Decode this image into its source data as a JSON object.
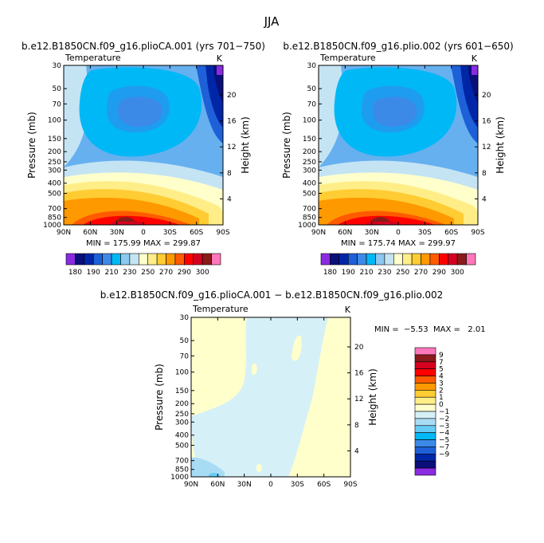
{
  "page_title": "JJA",
  "colors": {
    "c180": "#8a2be2",
    "c185": "#0a0f7a",
    "c190": "#0026a8",
    "c195": "#1e60d8",
    "c200": "#3c8ae8",
    "c210": "#00b8f5",
    "c220": "#8cc8f0",
    "c230": "#c4e4f4",
    "c240": "#ffffcc",
    "c250": "#ffee88",
    "c260": "#ffcc33",
    "c270": "#ff9900",
    "c280": "#ff5a00",
    "c290": "#ff0000",
    "c300": "#d40020",
    "c310": "#8b1a1a",
    "c320": "#ff77bb",
    "d_lo": "#8a2be2",
    "d_m9": "#0a0f7a",
    "d_m7": "#0026a8",
    "d_m5": "#1e60d8",
    "d_m4": "#3c8ae8",
    "d_m3": "#00b8f5",
    "d_m2": "#66ccf5",
    "d_m1": "#a8dcf4",
    "d_0": "#d6f0f8",
    "d_1": "#ffffcc",
    "d_2": "#ffee88",
    "d_3": "#ffcc33",
    "d_4": "#ff9900",
    "d_5": "#ff5a00",
    "d_7": "#ff0000",
    "d_9": "#d40020",
    "d_hi": "#8b1a1a",
    "d_top": "#ff77bb"
  },
  "chart_data": [
    {
      "type": "heatmap",
      "title": "b.e12.B1850CN.f09_g16.plioCA.001 (yrs 701−750)",
      "subtitle": "Temperature",
      "units": "K",
      "ylabel": "Pressure (mb)",
      "ylabel_right": "Height (km)",
      "x_ticks": [
        "90N",
        "60N",
        "30N",
        "0",
        "30S",
        "60S",
        "90S"
      ],
      "y_ticks": [
        "30",
        "50",
        "70",
        "100",
        "150",
        "200",
        "250",
        "300",
        "400",
        "500",
        "700",
        "850",
        "1000"
      ],
      "y2_ticks": [
        "20",
        "16",
        "12",
        "8",
        "4"
      ],
      "stats": "MIN = 175.99   MAX = 299.87",
      "min": 175.99,
      "max": 299.87
    },
    {
      "type": "heatmap",
      "title": "b.e12.B1850CN.f09_g16.plio.002 (yrs 601−650)",
      "subtitle": "Temperature",
      "units": "K",
      "ylabel": "Pressure (mb)",
      "ylabel_right": "Height (km)",
      "x_ticks": [
        "90N",
        "60N",
        "30N",
        "0",
        "30S",
        "60S",
        "90S"
      ],
      "y_ticks": [
        "30",
        "50",
        "70",
        "100",
        "150",
        "200",
        "250",
        "300",
        "400",
        "500",
        "700",
        "850",
        "1000"
      ],
      "y2_ticks": [
        "20",
        "16",
        "12",
        "8",
        "4"
      ],
      "stats": "MIN = 175.74   MAX = 299.97",
      "min": 175.74,
      "max": 299.97
    },
    {
      "type": "heatmap",
      "title": "b.e12.B1850CN.f09_g16.plioCA.001 − b.e12.B1850CN.f09_g16.plio.002",
      "subtitle": "Temperature",
      "units": "K",
      "ylabel": "Pressure (mb)",
      "ylabel_right": "Height (km)",
      "x_ticks": [
        "90N",
        "60N",
        "30N",
        "0",
        "30S",
        "60S",
        "90S"
      ],
      "y_ticks": [
        "30",
        "50",
        "70",
        "100",
        "150",
        "200",
        "250",
        "300",
        "400",
        "500",
        "700",
        "850",
        "1000"
      ],
      "y2_ticks": [
        "20",
        "16",
        "12",
        "8",
        "4"
      ],
      "stats": "MIN =  −5.53  MAX =   2.01",
      "min": -5.53,
      "max": 2.01
    }
  ],
  "colorbar_main": {
    "labels": [
      "180",
      "190",
      "210",
      "230",
      "250",
      "270",
      "290",
      "300"
    ]
  },
  "colorbar_diff": {
    "labels": [
      "9",
      "7",
      "5",
      "4",
      "3",
      "2",
      "1",
      "0",
      "−1",
      "−2",
      "−3",
      "−4",
      "−5",
      "−7",
      "−9"
    ]
  }
}
